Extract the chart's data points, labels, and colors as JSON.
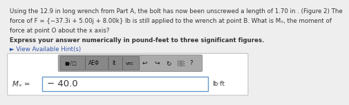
{
  "bg_color": "#eeeeee",
  "text_line1": "Using the 12.9 in long wrench from Part A, the bolt has now been unscrewed a length of 1.70 in . (Figure 2) The",
  "text_line2": "force of F = {−37.3i + 5.00j + 8.00k} lb is still applied to the wrench at point B. What is Mₓ, the moment of",
  "text_line3": "force at point O about the x axis?",
  "bold_line": "Express your answer numerically in pound-feet to three significant figures.",
  "hint_text": "► View Available Hint(s)",
  "hint_color": "#3355aa",
  "toolbar_bg": "#888888",
  "btn_labels": [
    "■√□",
    "AEΦ",
    "It",
    "vec",
    "↩",
    "↪",
    "↻",
    "░░",
    "?"
  ],
  "btn_bg": "#999999",
  "answer_label": "Mₓ =",
  "answer_value": "− 40.0",
  "answer_unit": "lb·ft",
  "input_box_bg": "#ffffff",
  "input_border_color": "#6699cc",
  "outer_box_bg": "#ffffff",
  "outer_box_border": "#bbbbbb",
  "body_text_color": "#333333",
  "body_fontsize": 6.2,
  "bold_fontsize": 6.2,
  "answer_fontsize": 9.5,
  "label_fontsize": 7.5,
  "unit_fontsize": 6.5
}
